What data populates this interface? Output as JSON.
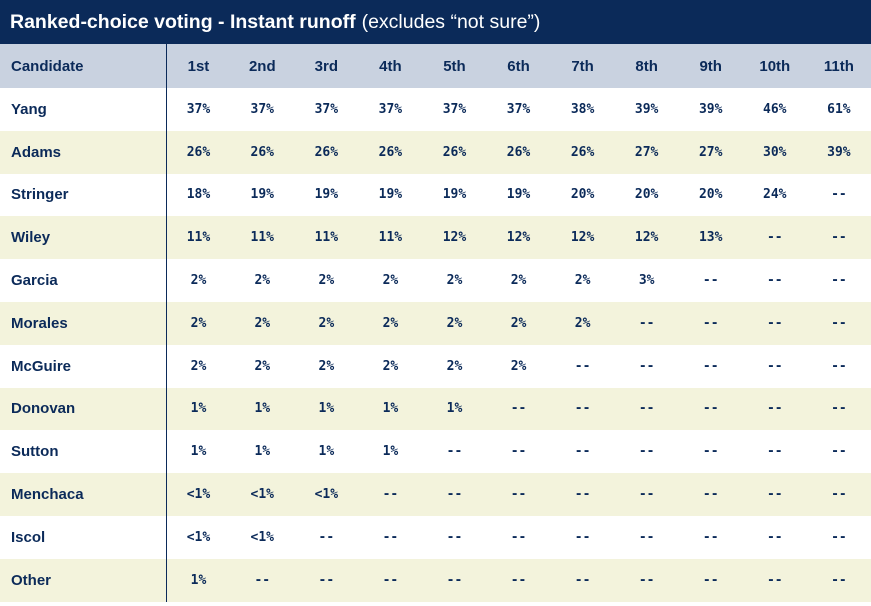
{
  "title": {
    "main": "Ranked-choice voting - Instant runoff",
    "sub": "(excludes “not sure”)"
  },
  "colors": {
    "header_bar": "#0b2a59",
    "column_header_bg": "#c9d2e0",
    "row_alt_bg": "#f3f3dc",
    "text": "#0b2a59"
  },
  "chart_data": {
    "type": "table",
    "title": "Ranked-choice voting - Instant runoff (excludes “not sure”)",
    "columns": [
      "Candidate",
      "1st",
      "2nd",
      "3rd",
      "4th",
      "5th",
      "6th",
      "7th",
      "8th",
      "9th",
      "10th",
      "11th"
    ],
    "rows": [
      {
        "name": "Yang",
        "values": [
          "37%",
          "37%",
          "37%",
          "37%",
          "37%",
          "37%",
          "38%",
          "39%",
          "39%",
          "46%",
          "61%"
        ]
      },
      {
        "name": "Adams",
        "values": [
          "26%",
          "26%",
          "26%",
          "26%",
          "26%",
          "26%",
          "26%",
          "27%",
          "27%",
          "30%",
          "39%"
        ]
      },
      {
        "name": "Stringer",
        "values": [
          "18%",
          "19%",
          "19%",
          "19%",
          "19%",
          "19%",
          "20%",
          "20%",
          "20%",
          "24%",
          "--"
        ]
      },
      {
        "name": "Wiley",
        "values": [
          "11%",
          "11%",
          "11%",
          "11%",
          "12%",
          "12%",
          "12%",
          "12%",
          "13%",
          "--",
          "--"
        ]
      },
      {
        "name": "Garcia",
        "values": [
          "2%",
          "2%",
          "2%",
          "2%",
          "2%",
          "2%",
          "2%",
          "3%",
          "--",
          "--",
          "--"
        ]
      },
      {
        "name": "Morales",
        "values": [
          "2%",
          "2%",
          "2%",
          "2%",
          "2%",
          "2%",
          "2%",
          "--",
          "--",
          "--",
          "--"
        ]
      },
      {
        "name": "McGuire",
        "values": [
          "2%",
          "2%",
          "2%",
          "2%",
          "2%",
          "2%",
          "--",
          "--",
          "--",
          "--",
          "--"
        ]
      },
      {
        "name": "Donovan",
        "values": [
          "1%",
          "1%",
          "1%",
          "1%",
          "1%",
          "--",
          "--",
          "--",
          "--",
          "--",
          "--"
        ]
      },
      {
        "name": "Sutton",
        "values": [
          "1%",
          "1%",
          "1%",
          "1%",
          "--",
          "--",
          "--",
          "--",
          "--",
          "--",
          "--"
        ]
      },
      {
        "name": "Menchaca",
        "values": [
          "<1%",
          "<1%",
          "<1%",
          "--",
          "--",
          "--",
          "--",
          "--",
          "--",
          "--",
          "--"
        ]
      },
      {
        "name": "Iscol",
        "values": [
          "<1%",
          "<1%",
          "--",
          "--",
          "--",
          "--",
          "--",
          "--",
          "--",
          "--",
          "--"
        ]
      },
      {
        "name": "Other",
        "values": [
          "1%",
          "--",
          "--",
          "--",
          "--",
          "--",
          "--",
          "--",
          "--",
          "--",
          "--"
        ]
      }
    ]
  }
}
